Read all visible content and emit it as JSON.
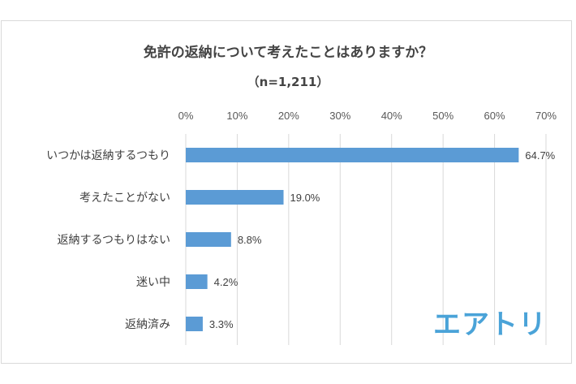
{
  "chart_data": {
    "type": "bar",
    "orientation": "horizontal",
    "title": "免許の返納について考えたことはありますか？",
    "subtitle": "（n=1,211）",
    "categories": [
      "いつかは返納するつもり",
      "考えたことがない",
      "返納するつもりはない",
      "迷い中",
      "返納済み"
    ],
    "values": [
      64.7,
      19.0,
      8.8,
      4.2,
      3.3
    ],
    "value_labels": [
      "64.7%",
      "19.0%",
      "8.8%",
      "4.2%",
      "3.3%"
    ],
    "xlim": [
      0,
      70
    ],
    "xticks": [
      "0%",
      "10%",
      "20%",
      "30%",
      "40%",
      "50%",
      "60%",
      "70%"
    ],
    "grid": true,
    "bar_color": "#5b9bd5",
    "xlabel": "",
    "ylabel": ""
  },
  "logo": "エアトリ"
}
